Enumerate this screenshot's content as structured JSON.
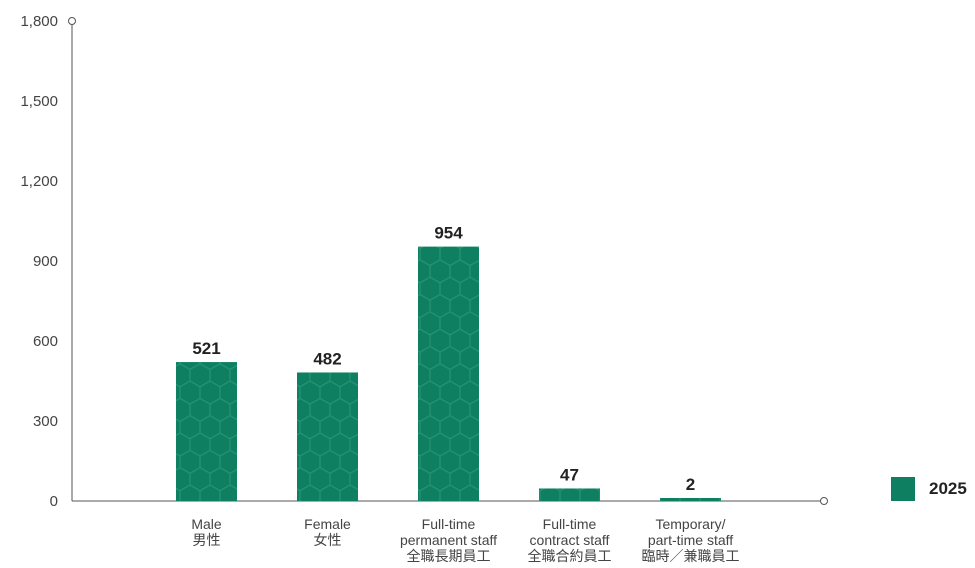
{
  "chart_data": {
    "type": "bar",
    "categories": [
      [
        "Male",
        "男性"
      ],
      [
        "Female",
        "女性"
      ],
      [
        "Full-time",
        "permanent staff",
        "全職長期員工"
      ],
      [
        "Full-time",
        "contract staff",
        "全職合約員工"
      ],
      [
        "Temporary/",
        "part-time staff",
        "臨時／兼職員工"
      ]
    ],
    "series": [
      {
        "name": "2025",
        "values": [
          521,
          482,
          954,
          47,
          2
        ],
        "color": "#0f7f61"
      }
    ],
    "ylim": [
      0,
      1800
    ],
    "yticks": [
      0,
      300,
      600,
      900,
      1200,
      1500,
      1800
    ],
    "ytick_labels": [
      "0",
      "300",
      "600",
      "900",
      "1,200",
      "1,500",
      "1,800"
    ],
    "legend_position": "right",
    "grid": false
  }
}
